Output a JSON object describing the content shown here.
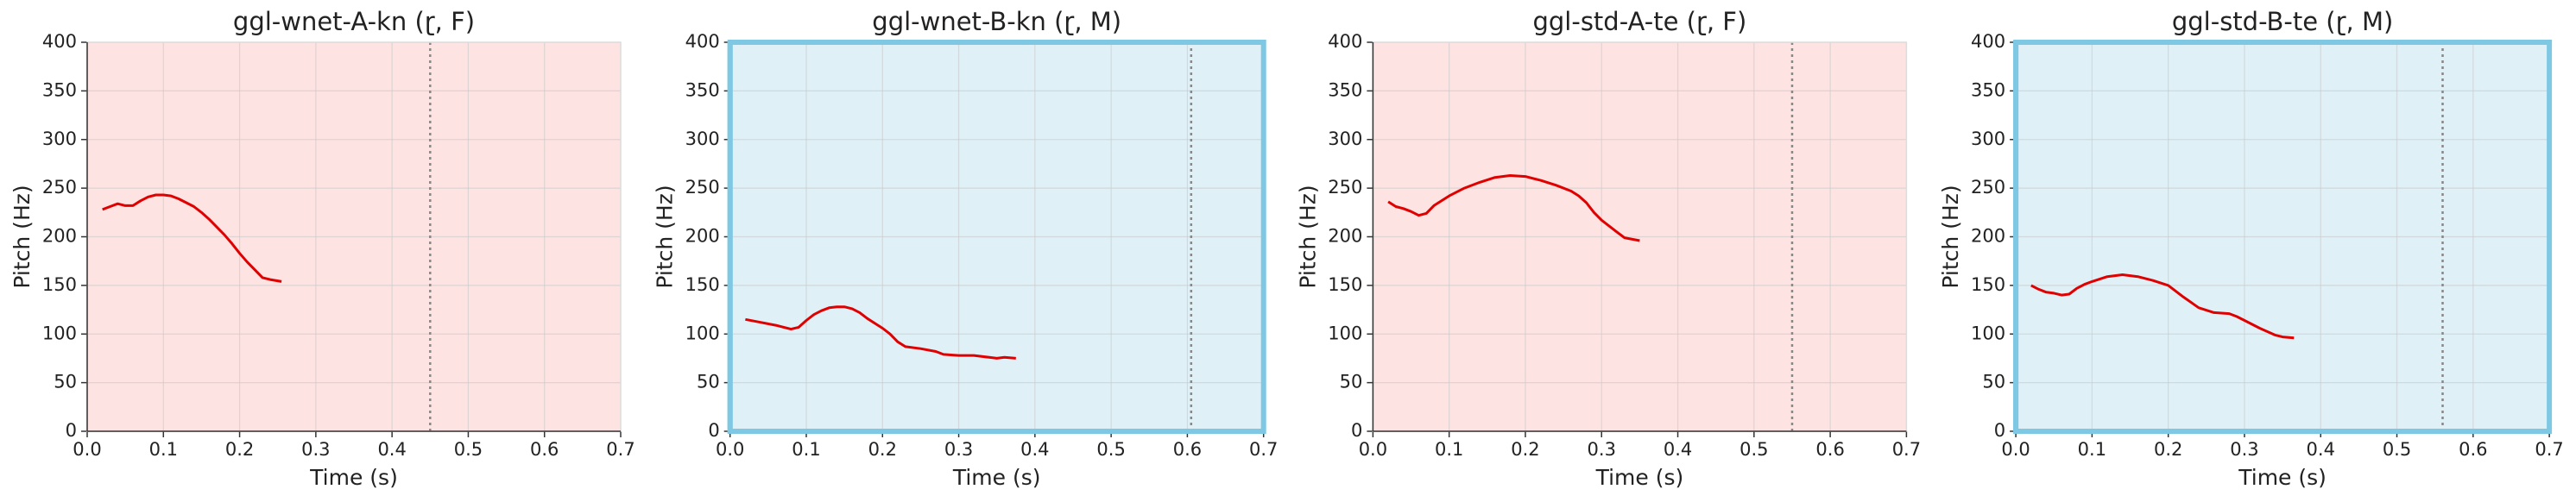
{
  "chart_data": [
    {
      "type": "line",
      "title": "ggl-wnet-A-kn (ɽ, F)",
      "x_label": "Time (s)",
      "y_label": "Pitch (Hz)",
      "background": "#fde3e1",
      "grid": true,
      "vline": 0.45,
      "x": [
        0.02,
        0.03,
        0.04,
        0.05,
        0.06,
        0.07,
        0.08,
        0.09,
        0.1,
        0.11,
        0.12,
        0.13,
        0.14,
        0.15,
        0.16,
        0.17,
        0.18,
        0.19,
        0.2,
        0.21,
        0.22,
        0.23,
        0.24,
        0.255
      ],
      "series": [
        {
          "color": "#e00000",
          "values": [
            228,
            231,
            234,
            232,
            232,
            237,
            241,
            243,
            243,
            242,
            239,
            235,
            231,
            225,
            218,
            210,
            202,
            193,
            183,
            174,
            166,
            158,
            156,
            154
          ]
        }
      ],
      "xlim": [
        0,
        0.7
      ],
      "xticks": [
        {
          "value": 0,
          "label": "0.0"
        },
        0.1,
        0.2,
        0.3,
        0.4,
        0.5,
        0.6,
        0.7
      ],
      "ylim": [
        0,
        400
      ],
      "yticks": [
        0,
        50,
        100,
        150,
        200,
        250,
        300,
        350,
        400
      ]
    },
    {
      "type": "line",
      "title": "ggl-wnet-B-kn (ɽ, M)",
      "x_label": "Time (s)",
      "y_label": "Pitch (Hz)",
      "background": "#dff0f7",
      "frame": "#7ec8e3",
      "grid": true,
      "vline": 0.605,
      "x": [
        0.02,
        0.04,
        0.06,
        0.08,
        0.09,
        0.1,
        0.11,
        0.12,
        0.13,
        0.14,
        0.15,
        0.16,
        0.17,
        0.18,
        0.2,
        0.21,
        0.22,
        0.23,
        0.25,
        0.27,
        0.28,
        0.3,
        0.32,
        0.34,
        0.35,
        0.36,
        0.375
      ],
      "series": [
        {
          "color": "#e00000",
          "values": [
            115,
            112,
            109,
            105,
            107,
            114,
            120,
            124,
            127,
            128,
            128,
            126,
            122,
            116,
            106,
            100,
            92,
            87,
            85,
            82,
            79,
            78,
            78,
            76,
            75,
            76,
            75
          ]
        }
      ],
      "xlim": [
        0,
        0.7
      ],
      "xticks": [
        {
          "value": 0,
          "label": "0.0"
        },
        0.1,
        0.2,
        0.3,
        0.4,
        0.5,
        0.6,
        0.7
      ],
      "ylim": [
        0,
        400
      ],
      "yticks": [
        0,
        50,
        100,
        150,
        200,
        250,
        300,
        350,
        400
      ]
    },
    {
      "type": "line",
      "title": "ggl-std-A-te (ɽ, F)",
      "x_label": "Time (s)",
      "y_label": "Pitch (Hz)",
      "background": "#fde3e1",
      "grid": true,
      "vline": 0.55,
      "x": [
        0.02,
        0.03,
        0.04,
        0.05,
        0.06,
        0.07,
        0.08,
        0.1,
        0.12,
        0.14,
        0.16,
        0.18,
        0.2,
        0.22,
        0.24,
        0.26,
        0.27,
        0.28,
        0.29,
        0.3,
        0.32,
        0.33,
        0.35
      ],
      "series": [
        {
          "color": "#e00000",
          "values": [
            236,
            231,
            229,
            226,
            222,
            224,
            232,
            242,
            250,
            256,
            261,
            263,
            262,
            258,
            253,
            247,
            242,
            235,
            225,
            217,
            205,
            199,
            196
          ]
        }
      ],
      "xlim": [
        0,
        0.7
      ],
      "xticks": [
        {
          "value": 0,
          "label": "0.0"
        },
        0.1,
        0.2,
        0.3,
        0.4,
        0.5,
        0.6,
        0.7
      ],
      "ylim": [
        0,
        400
      ],
      "yticks": [
        0,
        50,
        100,
        150,
        200,
        250,
        300,
        350,
        400
      ]
    },
    {
      "type": "line",
      "title": "ggl-std-B-te (ɽ, M)",
      "x_label": "Time (s)",
      "y_label": "Pitch (Hz)",
      "background": "#dff0f7",
      "frame": "#7ec8e3",
      "grid": true,
      "vline": 0.56,
      "x": [
        0.02,
        0.03,
        0.04,
        0.05,
        0.06,
        0.07,
        0.08,
        0.09,
        0.1,
        0.12,
        0.14,
        0.16,
        0.18,
        0.2,
        0.22,
        0.24,
        0.26,
        0.28,
        0.29,
        0.3,
        0.32,
        0.34,
        0.35,
        0.365
      ],
      "series": [
        {
          "color": "#e00000",
          "values": [
            150,
            146,
            143,
            142,
            140,
            141,
            147,
            151,
            154,
            159,
            161,
            159,
            155,
            150,
            138,
            127,
            122,
            121,
            118,
            114,
            106,
            99,
            97,
            96
          ]
        }
      ],
      "xlim": [
        0,
        0.7
      ],
      "xticks": [
        {
          "value": 0,
          "label": "0.0"
        },
        0.1,
        0.2,
        0.3,
        0.4,
        0.5,
        0.6,
        0.7
      ],
      "ylim": [
        0,
        400
      ],
      "yticks": [
        0,
        50,
        100,
        150,
        200,
        250,
        300,
        350,
        400
      ]
    }
  ]
}
